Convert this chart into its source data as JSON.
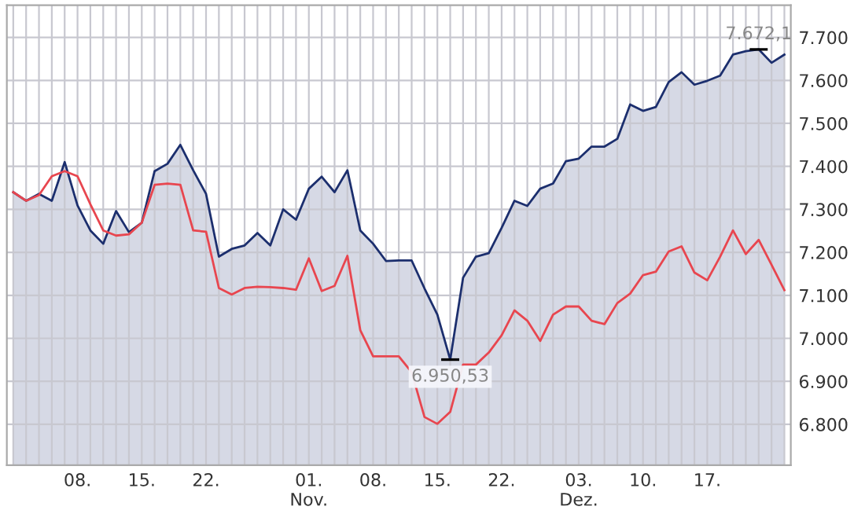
{
  "chart_data": {
    "type": "area",
    "categories": [
      null,
      null,
      null,
      null,
      null,
      "08.",
      null,
      null,
      null,
      null,
      "15.",
      null,
      null,
      null,
      null,
      "22.",
      null,
      null,
      null,
      null,
      null,
      null,
      null,
      "01.\nNov.",
      null,
      null,
      null,
      null,
      "08.",
      null,
      null,
      null,
      null,
      "15.",
      null,
      null,
      null,
      null,
      "22.",
      null,
      null,
      null,
      null,
      null,
      "03.\nDez.",
      null,
      null,
      null,
      null,
      "10.",
      null,
      null,
      null,
      null,
      "17.",
      null,
      null,
      null,
      null,
      null,
      null
    ],
    "series": [
      {
        "color": "#1c2f6e",
        "values": [
          7340,
          7320,
          7336,
          7320,
          7410,
          7309,
          7251,
          7220,
          7296,
          7247,
          7269,
          7389,
          7406,
          7450,
          7391,
          7336,
          7190,
          7208,
          7216,
          7245,
          7216,
          7300,
          7276,
          7348,
          7376,
          7340,
          7391,
          7251,
          7220,
          7180,
          7181,
          7181,
          7116,
          7055,
          6950.53,
          7141,
          7190,
          7198,
          7257,
          7320,
          7308,
          7348,
          7360,
          7412,
          7418,
          7446,
          7446,
          7464,
          7544,
          7529,
          7538,
          7596,
          7619,
          7590,
          7599,
          7611,
          7660,
          7668,
          7672.1,
          7641,
          7660
        ]
      },
      {
        "type": "line",
        "color": "#e8464f",
        "values": [
          7340,
          7320,
          7333,
          7377,
          7389,
          7377,
          7312,
          7251,
          7239,
          7242,
          7269,
          7357,
          7360,
          7357,
          7251,
          7248,
          7117,
          7102,
          7117,
          7120,
          7119,
          7117,
          7113,
          7186,
          7110,
          7122,
          7192,
          7019,
          6958,
          6958,
          6958,
          6921,
          6817,
          6801,
          6829,
          6939,
          6939,
          6967,
          7007,
          7065,
          7041,
          6994,
          7055,
          7074,
          7074,
          7041,
          7033,
          7082,
          7104,
          7147,
          7155,
          7202,
          7214,
          7153,
          7135,
          7190,
          7251,
          7196,
          7229,
          7171,
          7112
        ]
      }
    ],
    "ylim": [
      6705,
      7775
    ],
    "yticks": [
      {
        "value": 6800,
        "label": "6.800"
      },
      {
        "value": 6900,
        "label": "6.900"
      },
      {
        "value": 7000,
        "label": "7.000"
      },
      {
        "value": 7100,
        "label": "7.100"
      },
      {
        "value": 7200,
        "label": "7.200"
      },
      {
        "value": 7300,
        "label": "7.300"
      },
      {
        "value": 7400,
        "label": "7.400"
      },
      {
        "value": 7500,
        "label": "7.500"
      },
      {
        "value": 7600,
        "label": "7.600"
      },
      {
        "value": 7700,
        "label": "7.700"
      }
    ],
    "grid": true,
    "annotations": [
      {
        "text": "6.950,53",
        "y": 6950.53
      },
      {
        "text": "7.672,1",
        "y": 7672.1
      }
    ]
  }
}
